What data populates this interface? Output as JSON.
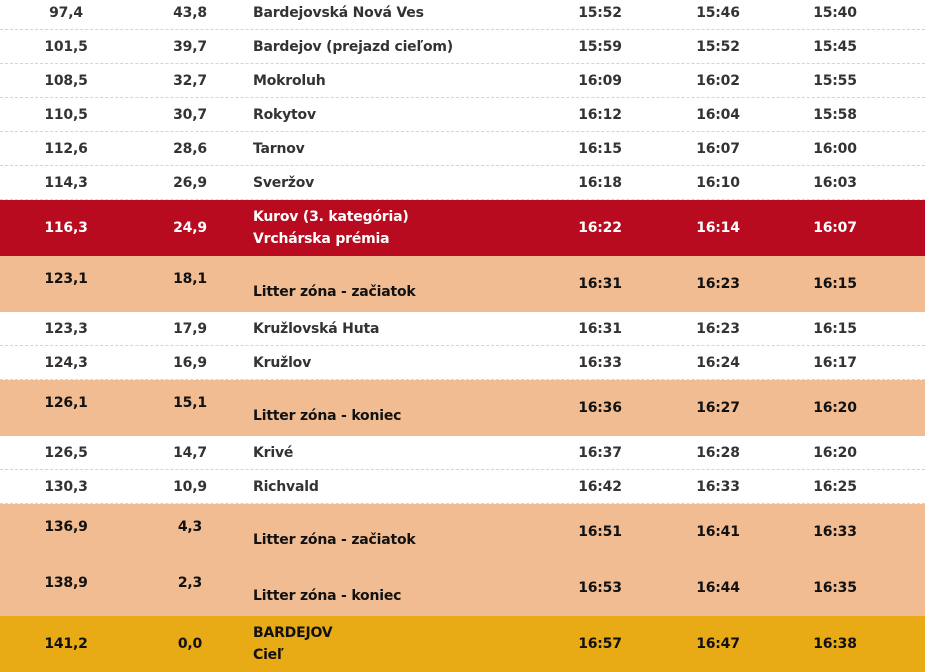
{
  "table": {
    "rows": [
      {
        "type": "plain",
        "km_done": "97,4",
        "km_left": "43,8",
        "place": "Bardejovská Nová Ves",
        "place2": "",
        "t1": "15:52",
        "t2": "15:46",
        "t3": "15:40"
      },
      {
        "type": "plain",
        "km_done": "101,5",
        "km_left": "39,7",
        "place": "Bardejov (prejazd cieľom)",
        "place2": "",
        "t1": "15:59",
        "t2": "15:52",
        "t3": "15:45"
      },
      {
        "type": "plain",
        "km_done": "108,5",
        "km_left": "32,7",
        "place": "Mokroluh",
        "place2": "",
        "t1": "16:09",
        "t2": "16:02",
        "t3": "15:55"
      },
      {
        "type": "plain",
        "km_done": "110,5",
        "km_left": "30,7",
        "place": "Rokytov",
        "place2": "",
        "t1": "16:12",
        "t2": "16:04",
        "t3": "15:58"
      },
      {
        "type": "plain",
        "km_done": "112,6",
        "km_left": "28,6",
        "place": "Tarnov",
        "place2": "",
        "t1": "16:15",
        "t2": "16:07",
        "t3": "16:00"
      },
      {
        "type": "plain",
        "km_done": "114,3",
        "km_left": "26,9",
        "place": "Sveržov",
        "place2": "",
        "t1": "16:18",
        "t2": "16:10",
        "t3": "16:03"
      },
      {
        "type": "red",
        "km_done": "116,3",
        "km_left": "24,9",
        "place": "Kurov (3. kategória)",
        "place2": "Vrchárska prémia",
        "t1": "16:22",
        "t2": "16:14",
        "t3": "16:07"
      },
      {
        "type": "litter",
        "km_done": "123,1",
        "km_left": "18,1",
        "place": "Litter zóna - začiatok",
        "place2": "",
        "t1": "16:31",
        "t2": "16:23",
        "t3": "16:15"
      },
      {
        "type": "plain",
        "km_done": "123,3",
        "km_left": "17,9",
        "place": "Kružlovská Huta",
        "place2": "",
        "t1": "16:31",
        "t2": "16:23",
        "t3": "16:15"
      },
      {
        "type": "plain",
        "km_done": "124,3",
        "km_left": "16,9",
        "place": "Kružlov",
        "place2": "",
        "t1": "16:33",
        "t2": "16:24",
        "t3": "16:17"
      },
      {
        "type": "litter",
        "km_done": "126,1",
        "km_left": "15,1",
        "place": "Litter zóna - koniec",
        "place2": "",
        "t1": "16:36",
        "t2": "16:27",
        "t3": "16:20"
      },
      {
        "type": "plain",
        "km_done": "126,5",
        "km_left": "14,7",
        "place": "Krivé",
        "place2": "",
        "t1": "16:37",
        "t2": "16:28",
        "t3": "16:20"
      },
      {
        "type": "plain",
        "km_done": "130,3",
        "km_left": "10,9",
        "place": "Richvald",
        "place2": "",
        "t1": "16:42",
        "t2": "16:33",
        "t3": "16:25"
      },
      {
        "type": "litter",
        "km_done": "136,9",
        "km_left": "4,3",
        "place": "Litter zóna - začiatok",
        "place2": "",
        "t1": "16:51",
        "t2": "16:41",
        "t3": "16:33"
      },
      {
        "type": "litter",
        "km_done": "138,9",
        "km_left": "2,3",
        "place": "Litter zóna - koniec",
        "place2": "",
        "t1": "16:53",
        "t2": "16:44",
        "t3": "16:35"
      },
      {
        "type": "finish",
        "km_done": "141,2",
        "km_left": "0,0",
        "place": "BARDEJOV",
        "place2": "Cieľ",
        "t1": "16:57",
        "t2": "16:47",
        "t3": "16:38"
      }
    ]
  },
  "colors": {
    "climb_row": "#b80b20",
    "litter_row": "#f1bc91",
    "finish_row": "#e8aa15",
    "separator": "#cfd5dc",
    "text": "#333333"
  }
}
